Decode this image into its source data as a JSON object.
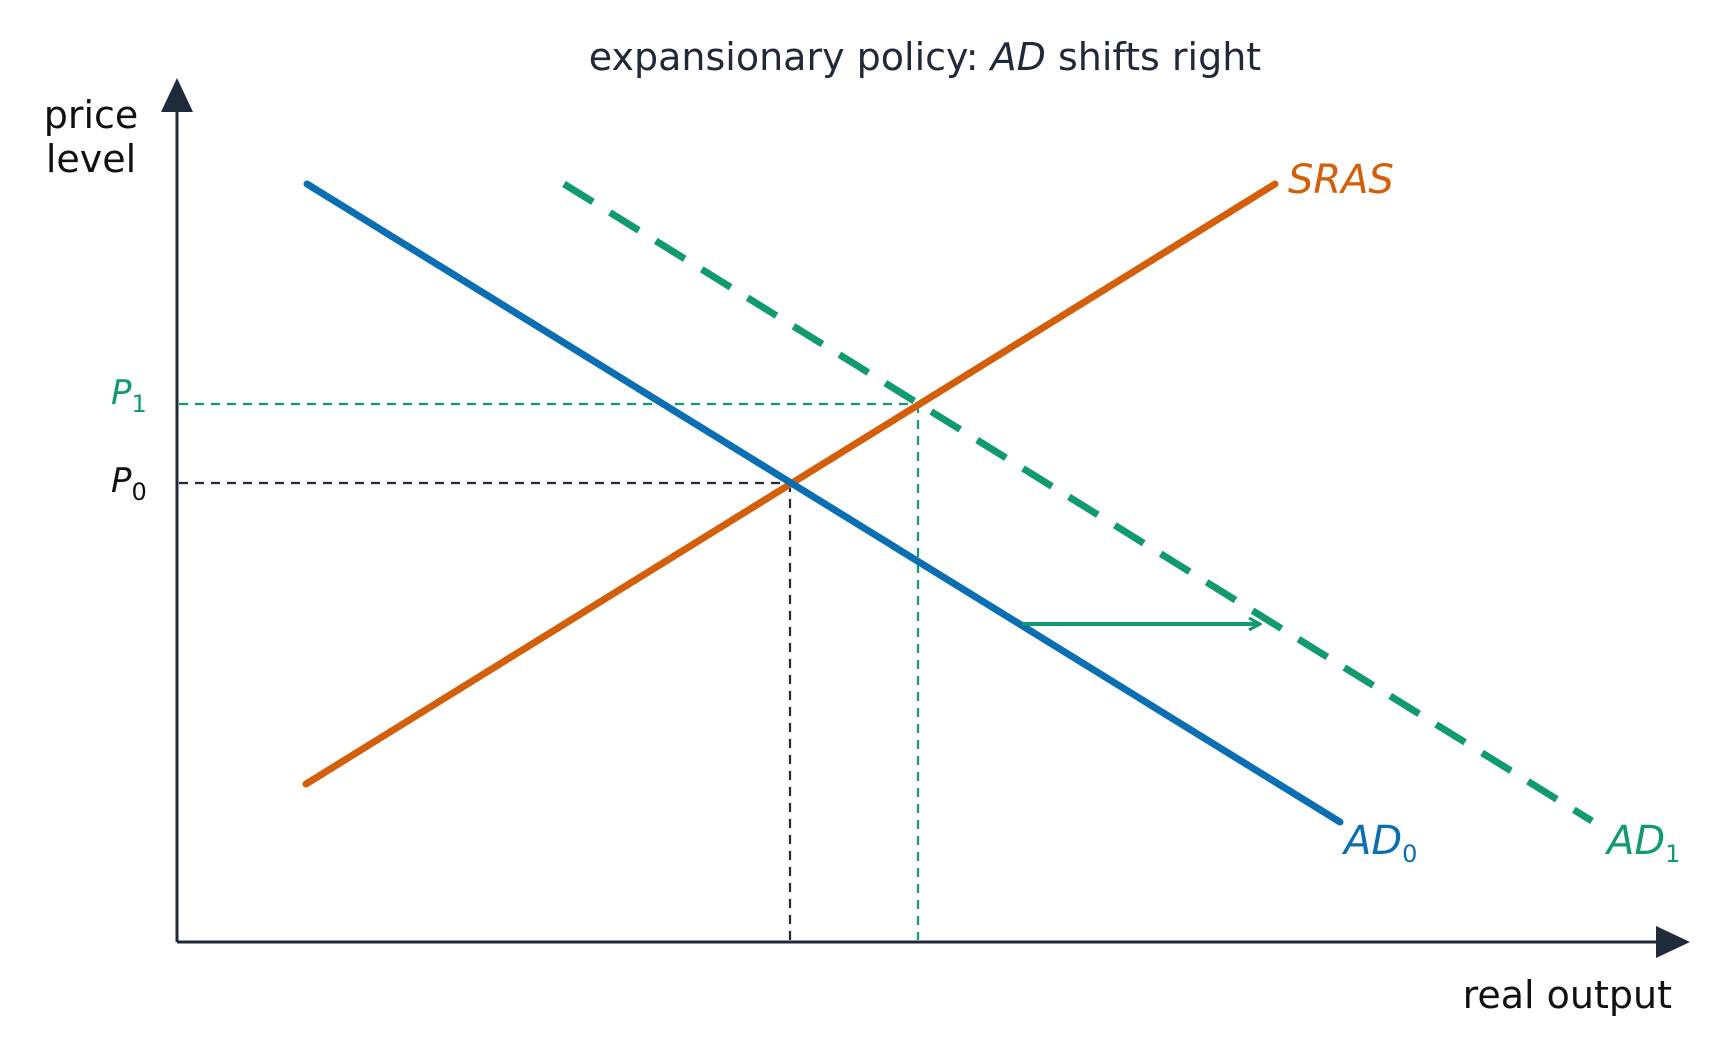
{
  "title": {
    "before": "expansionary policy: ",
    "emphasis": "AD",
    "after": " shifts right"
  },
  "axes": {
    "y_label_line1": "price",
    "y_label_line2": "level",
    "x_label": "real output",
    "color": "#1f2a3a"
  },
  "curves": {
    "sras": {
      "label": "SRAS",
      "color": "#d35f0b"
    },
    "ad0": {
      "label": "AD",
      "subscript": "0",
      "color": "#0a6fb2"
    },
    "ad1": {
      "label": "AD",
      "subscript": "1",
      "color": "#109a6f"
    }
  },
  "price_levels": {
    "p0": {
      "label": "P",
      "subscript": "0",
      "color": "#111111"
    },
    "p1": {
      "label": "P",
      "subscript": "1",
      "color": "#109a6f"
    }
  },
  "shift_arrow": {
    "color": "#109a6f"
  }
}
